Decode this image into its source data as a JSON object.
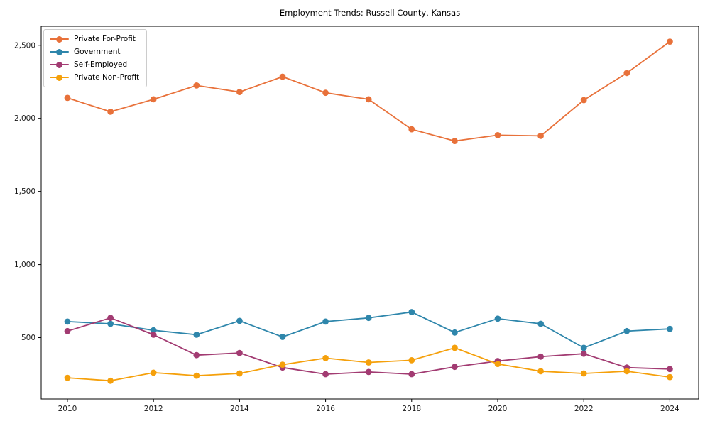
{
  "title": "Employment Trends: Russell County, Kansas",
  "chart_data": {
    "type": "line",
    "title": "Employment Trends: Russell County, Kansas",
    "xlabel": "",
    "ylabel": "",
    "x": [
      2010,
      2011,
      2012,
      2013,
      2014,
      2015,
      2016,
      2017,
      2018,
      2019,
      2020,
      2021,
      2022,
      2023,
      2024
    ],
    "series": [
      {
        "name": "Private For-Profit",
        "color": "#E8713A",
        "values": [
          2140,
          2045,
          2130,
          2225,
          2180,
          2285,
          2175,
          2130,
          1925,
          1845,
          1885,
          1880,
          2125,
          2310,
          2525
        ]
      },
      {
        "name": "Government",
        "color": "#2E86AB",
        "values": [
          610,
          595,
          550,
          520,
          615,
          505,
          610,
          635,
          675,
          535,
          630,
          595,
          430,
          545,
          560
        ]
      },
      {
        "name": "Self-Employed",
        "color": "#A23B72",
        "values": [
          545,
          635,
          520,
          380,
          395,
          295,
          250,
          265,
          250,
          300,
          340,
          370,
          390,
          295,
          285
        ]
      },
      {
        "name": "Private Non-Profit",
        "color": "#F5A00B",
        "values": [
          225,
          205,
          260,
          240,
          255,
          315,
          360,
          330,
          345,
          430,
          320,
          270,
          255,
          270,
          230
        ]
      }
    ],
    "x_ticks": [
      2010,
      2012,
      2014,
      2016,
      2018,
      2020,
      2022,
      2024
    ],
    "x_tick_labels": [
      "2010",
      "2012",
      "2014",
      "2016",
      "2018",
      "2020",
      "2022",
      "2024"
    ],
    "y_ticks": [
      500,
      1000,
      1500,
      2000,
      2500
    ],
    "y_tick_labels": [
      "500",
      "1,000",
      "1,500",
      "2,000",
      "2,500"
    ],
    "xlim": [
      2009.39,
      2024.67
    ],
    "ylim": [
      80,
      2630
    ],
    "grid": false,
    "legend_position": "upper left",
    "marker": "circle",
    "axis_color": "#000000",
    "tick_label_color": "#1a1a1a"
  }
}
